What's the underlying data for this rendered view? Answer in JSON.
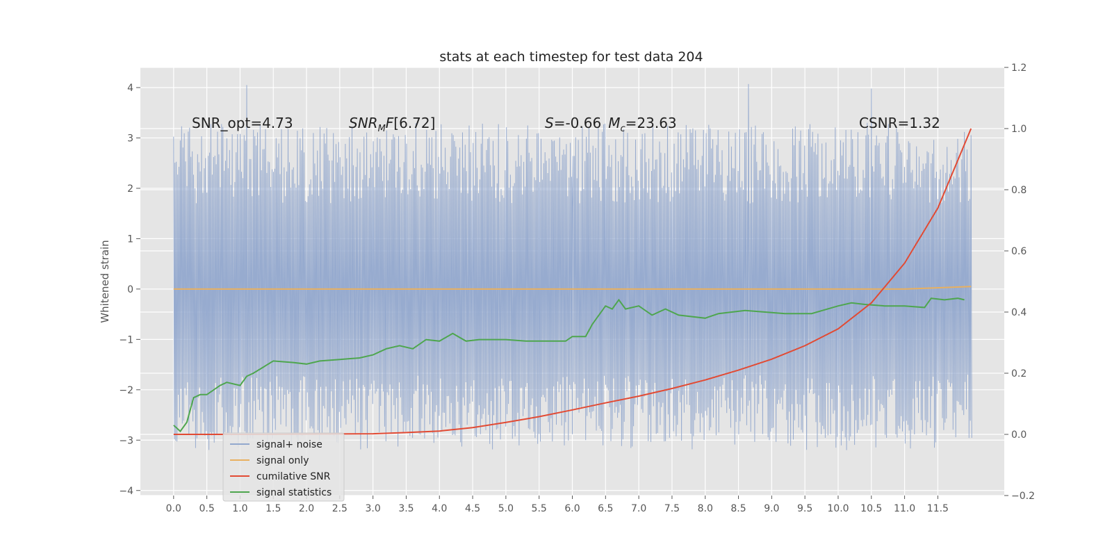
{
  "chart_data": {
    "type": "line",
    "title": "stats at each timestep for test data 204",
    "ylabel": "Whitened strain",
    "xlim": [
      -0.5,
      12.5
    ],
    "ylim": [
      -4.1,
      4.4
    ],
    "y2lim": [
      -0.2,
      1.2
    ],
    "x_ticks": [
      "0.0",
      "0.5",
      "1.0",
      "1.5",
      "2.0",
      "2.5",
      "3.0",
      "3.5",
      "4.0",
      "4.5",
      "5.0",
      "5.5",
      "6.0",
      "6.5",
      "7.0",
      "7.5",
      "8.0",
      "8.5",
      "9.0",
      "9.5",
      "10.0",
      "10.5",
      "11.0",
      "11.5"
    ],
    "y_ticks": [
      "4",
      "3",
      "2",
      "1",
      "0",
      "−1",
      "−2",
      "−3",
      "−4"
    ],
    "y2_ticks": [
      "1.2",
      "1.0",
      "0.8",
      "0.6",
      "0.4",
      "0.2",
      "0.0",
      "−0.2"
    ],
    "grid": true,
    "legend_position": "bottom-left",
    "annotations": {
      "snr_opt": "SNR_opt=4.73",
      "snr_mf": "[6.72]",
      "s_mc": "=-0.66",
      "mc_val": "=23.63",
      "csnr": "CSNR=1.32"
    },
    "series": [
      {
        "name": "signal+ noise",
        "color": "#92a8cd",
        "axis": "left",
        "x_range": [
          0.0,
          12.0
        ],
        "y_range": [
          -3.7,
          4.1
        ],
        "samples": 600,
        "notable_spikes": [
          [
            1.1,
            4.05
          ],
          [
            8.65,
            4.07
          ],
          [
            10.5,
            3.98
          ],
          [
            0.75,
            -3.65
          ],
          [
            6.0,
            1.6
          ]
        ]
      },
      {
        "name": "signal only",
        "color": "#e8b060",
        "axis": "left",
        "x": [
          0.0,
          11.0,
          12.0
        ],
        "y": [
          0.0,
          0.0,
          0.05
        ]
      },
      {
        "name": "cumilative SNR",
        "color": "#e24a33",
        "axis": "right",
        "x": [
          0.0,
          1.0,
          2.0,
          3.0,
          3.5,
          4.0,
          4.5,
          5.0,
          5.5,
          6.0,
          6.5,
          7.0,
          7.5,
          8.0,
          8.5,
          9.0,
          9.5,
          10.0,
          10.5,
          11.0,
          11.5,
          12.0
        ],
        "y": [
          0.0,
          0.0,
          0.001,
          0.002,
          0.006,
          0.011,
          0.022,
          0.039,
          0.058,
          0.08,
          0.103,
          0.125,
          0.15,
          0.178,
          0.21,
          0.246,
          0.29,
          0.345,
          0.43,
          0.56,
          0.74,
          1.0
        ]
      },
      {
        "name": "signal statistics",
        "color": "#4ea64e",
        "axis": "right",
        "x": [
          0.0,
          0.1,
          0.2,
          0.3,
          0.4,
          0.5,
          0.7,
          0.8,
          1.0,
          1.1,
          1.2,
          1.5,
          1.8,
          2.0,
          2.2,
          2.5,
          2.8,
          3.0,
          3.2,
          3.4,
          3.6,
          3.8,
          4.0,
          4.2,
          4.4,
          4.6,
          4.8,
          5.0,
          5.3,
          5.6,
          5.9,
          6.0,
          6.2,
          6.3,
          6.5,
          6.6,
          6.7,
          6.8,
          7.0,
          7.2,
          7.4,
          7.6,
          8.0,
          8.2,
          8.4,
          8.6,
          8.9,
          9.2,
          9.6,
          10.0,
          10.2,
          10.4,
          10.7,
          11.0,
          11.3,
          11.4,
          11.6,
          11.8,
          11.9
        ],
        "y": [
          0.03,
          0.01,
          0.04,
          0.12,
          0.13,
          0.13,
          0.16,
          0.17,
          0.16,
          0.19,
          0.2,
          0.24,
          0.235,
          0.23,
          0.24,
          0.245,
          0.25,
          0.26,
          0.28,
          0.29,
          0.28,
          0.31,
          0.305,
          0.33,
          0.305,
          0.31,
          0.31,
          0.31,
          0.305,
          0.305,
          0.305,
          0.32,
          0.32,
          0.36,
          0.42,
          0.41,
          0.44,
          0.41,
          0.42,
          0.39,
          0.41,
          0.39,
          0.38,
          0.395,
          0.4,
          0.405,
          0.4,
          0.395,
          0.395,
          0.42,
          0.43,
          0.425,
          0.42,
          0.42,
          0.415,
          0.445,
          0.44,
          0.445,
          0.44
        ]
      }
    ]
  }
}
